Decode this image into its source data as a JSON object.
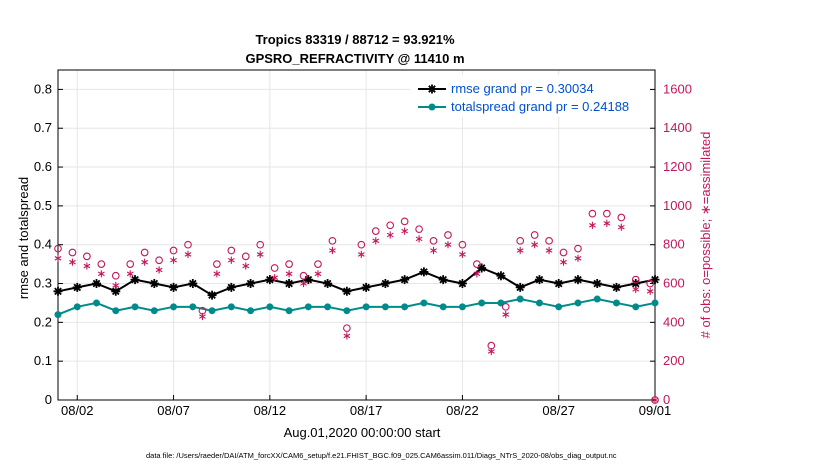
{
  "chart_data": {
    "type": "line",
    "title_line1": "Tropics 83319 / 88712 = 93.921%",
    "title_line2": "GPSRO_REFRACTIVITY @ 11410 m",
    "xlabel": "Aug.01,2020 00:00:00 start",
    "ylabel_left": "rmse and totalspread",
    "ylabel_right": "# of obs: o=possible; ∗=assimilated",
    "x_tick_labels": [
      "08/02",
      "08/07",
      "08/12",
      "08/17",
      "08/22",
      "08/27",
      "09/01"
    ],
    "x_tick_days": [
      1,
      6,
      11,
      16,
      21,
      26,
      31
    ],
    "xlim_days": [
      0,
      31
    ],
    "ylim_left": [
      0,
      0.85
    ],
    "y_ticks_left": [
      0,
      0.1,
      0.2,
      0.3,
      0.4,
      0.5,
      0.6,
      0.7,
      0.8
    ],
    "y_tick_labels_left": [
      "0",
      "0.1",
      "0.2",
      "0.3",
      "0.4",
      "0.5",
      "0.6",
      "0.7",
      "0.8"
    ],
    "ylim_right": [
      0,
      1700
    ],
    "y_ticks_right": [
      0,
      200,
      400,
      600,
      800,
      1000,
      1200,
      1400,
      1600
    ],
    "y_tick_labels_right": [
      "0",
      "200",
      "400",
      "600",
      "800",
      "1000",
      "1200",
      "1400",
      "1600"
    ],
    "grid": true,
    "legend_position": "top-right",
    "series": [
      {
        "name": "rmse grand pr = 0.30034",
        "color": "#000000",
        "marker": "star",
        "axis": "left",
        "days": [
          0.0,
          1.0,
          2.0,
          3.0,
          4.0,
          5.0,
          6.0,
          7.0,
          8.0,
          9.0,
          10.0,
          11.0,
          12.0,
          13.0,
          14.0,
          15.0,
          16.0,
          17.0,
          18.0,
          19.0,
          20.0,
          21.0,
          22.0,
          23.0,
          24.0,
          25.0,
          26.0,
          27.0,
          28.0,
          29.0,
          30.0,
          31.0
        ],
        "values": [
          0.28,
          0.29,
          0.3,
          0.28,
          0.31,
          0.3,
          0.29,
          0.3,
          0.27,
          0.29,
          0.3,
          0.31,
          0.3,
          0.31,
          0.3,
          0.28,
          0.29,
          0.3,
          0.31,
          0.33,
          0.31,
          0.3,
          0.34,
          0.32,
          0.29,
          0.31,
          0.3,
          0.31,
          0.3,
          0.29,
          0.3,
          0.31
        ]
      },
      {
        "name": "totalspread grand pr = 0.24188",
        "color": "#008b8b",
        "marker": "dot",
        "axis": "left",
        "days": [
          0.0,
          1.0,
          2.0,
          3.0,
          4.0,
          5.0,
          6.0,
          7.0,
          8.0,
          9.0,
          10.0,
          11.0,
          12.0,
          13.0,
          14.0,
          15.0,
          16.0,
          17.0,
          18.0,
          19.0,
          20.0,
          21.0,
          22.0,
          23.0,
          24.0,
          25.0,
          26.0,
          27.0,
          28.0,
          29.0,
          30.0,
          31.0
        ],
        "values": [
          0.22,
          0.24,
          0.25,
          0.23,
          0.24,
          0.23,
          0.24,
          0.24,
          0.23,
          0.24,
          0.23,
          0.24,
          0.23,
          0.24,
          0.24,
          0.23,
          0.24,
          0.24,
          0.24,
          0.25,
          0.24,
          0.24,
          0.25,
          0.25,
          0.26,
          0.25,
          0.24,
          0.25,
          0.26,
          0.25,
          0.24,
          0.25
        ]
      },
      {
        "name": "possible obs",
        "color": "#c2185b",
        "marker": "open-circle",
        "axis": "right",
        "days": [
          0.0,
          0.75,
          1.5,
          2.25,
          3.0,
          3.75,
          4.5,
          5.25,
          6.0,
          6.75,
          7.5,
          8.25,
          9.0,
          9.75,
          10.5,
          11.25,
          12.0,
          12.75,
          13.5,
          14.25,
          15.0,
          15.75,
          16.5,
          17.25,
          18.0,
          18.75,
          19.5,
          20.25,
          21.0,
          21.75,
          22.5,
          23.25,
          24.0,
          24.75,
          25.5,
          26.25,
          27.0,
          27.75,
          28.5,
          29.25,
          30.0,
          30.75,
          31.0
        ],
        "values": [
          780,
          760,
          740,
          700,
          640,
          700,
          760,
          720,
          770,
          800,
          460,
          700,
          770,
          740,
          800,
          680,
          700,
          640,
          700,
          820,
          370,
          800,
          870,
          900,
          920,
          880,
          820,
          850,
          800,
          700,
          280,
          480,
          820,
          850,
          820,
          760,
          780,
          960,
          960,
          940,
          620,
          600,
          0
        ]
      },
      {
        "name": "assimilated obs",
        "color": "#c2185b",
        "marker": "asterisk",
        "axis": "right",
        "days": [
          0.0,
          0.75,
          1.5,
          2.25,
          3.0,
          3.75,
          4.5,
          5.25,
          6.0,
          6.75,
          7.5,
          8.25,
          9.0,
          9.75,
          10.5,
          11.25,
          12.0,
          12.75,
          13.5,
          14.25,
          15.0,
          15.75,
          16.5,
          17.25,
          18.0,
          18.75,
          19.5,
          20.25,
          21.0,
          21.75,
          22.5,
          23.25,
          24.0,
          24.75,
          25.5,
          26.25,
          27.0,
          27.75,
          28.5,
          29.25,
          30.0,
          30.75,
          31.0
        ],
        "values": [
          730,
          710,
          690,
          650,
          590,
          650,
          710,
          670,
          720,
          750,
          430,
          650,
          720,
          690,
          750,
          630,
          650,
          600,
          650,
          770,
          330,
          750,
          820,
          850,
          870,
          830,
          770,
          800,
          750,
          650,
          250,
          440,
          770,
          800,
          770,
          710,
          730,
          900,
          910,
          890,
          570,
          560,
          0
        ]
      }
    ]
  },
  "footer": {
    "data_file": "data file: /Users/raeder/DAI/ATM_forcXX/CAM6_setup/f.e21.FHIST_BGC.f09_025.CAM6assim.011/Diags_NTrS_2020-08/obs_diag_output.nc"
  }
}
